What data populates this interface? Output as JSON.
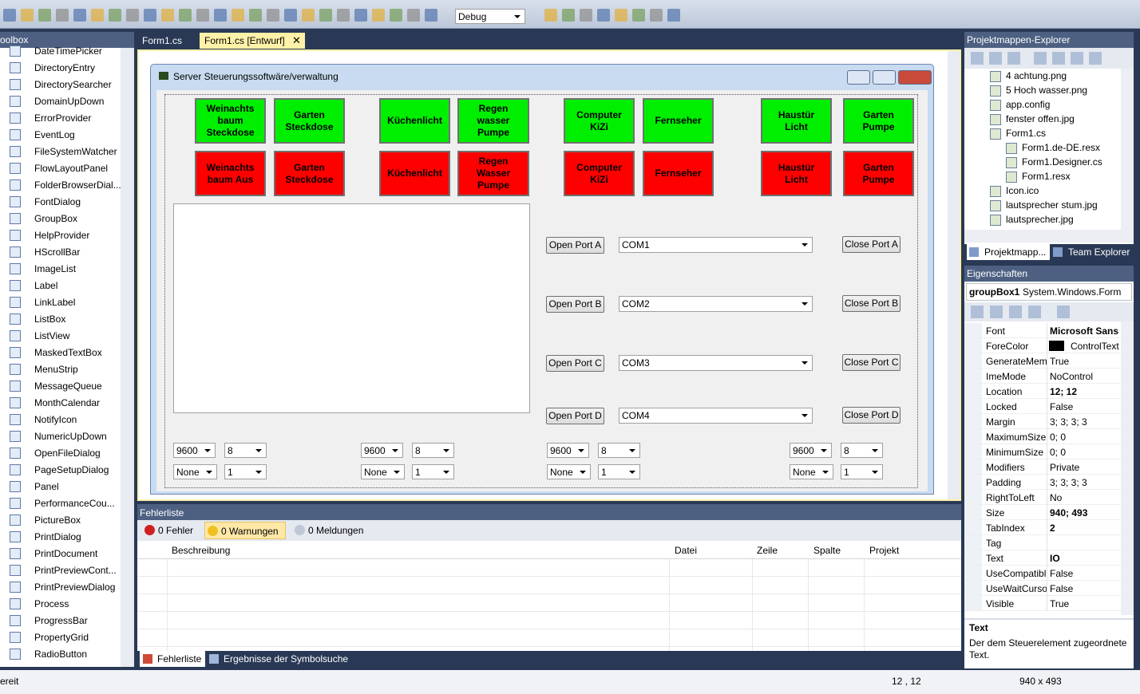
{
  "toolbar": {
    "config": "Debug"
  },
  "toolbox": {
    "title": "oolbox",
    "items": [
      "DateTimePicker",
      "DirectoryEntry",
      "DirectorySearcher",
      "DomainUpDown",
      "ErrorProvider",
      "EventLog",
      "FileSystemWatcher",
      "FlowLayoutPanel",
      "FolderBrowserDial...",
      "FontDialog",
      "GroupBox",
      "HelpProvider",
      "HScrollBar",
      "ImageList",
      "Label",
      "LinkLabel",
      "ListBox",
      "ListView",
      "MaskedTextBox",
      "MenuStrip",
      "MessageQueue",
      "MonthCalendar",
      "NotifyIcon",
      "NumericUpDown",
      "OpenFileDialog",
      "PageSetupDialog",
      "Panel",
      "PerformanceCou...",
      "PictureBox",
      "PrintDialog",
      "PrintDocument",
      "PrintPreviewCont...",
      "PrintPreviewDialog",
      "Process",
      "ProgressBar",
      "PropertyGrid",
      "RadioButton"
    ]
  },
  "tabs": [
    "Form1.cs",
    "Form1.cs [Entwurf]"
  ],
  "form": {
    "title": "Server Steuerungssoftwäre/verwaltung",
    "on_buttons": [
      "Weinachts\nbaum\nSteckdose",
      "Garten\nSteckdose",
      "Küchenlicht",
      "Regen\nwasser\nPumpe",
      "Computer\nKiZi",
      "Fernseher",
      "Haustür\nLicht",
      "Garten\nPumpe"
    ],
    "off_buttons": [
      "Weinachts\nbaum Aus",
      "Garten\nSteckdose",
      "Küchenlicht",
      "Regen\nWasser\nPumpe",
      "Computer\nKiZi",
      "Fernseher",
      "Haustür\nLicht",
      "Garten\nPumpe"
    ],
    "ports": [
      {
        "open": "Open Port A",
        "com": "COM1",
        "close": "Close Port A"
      },
      {
        "open": "Open Port B",
        "com": "COM2",
        "close": "Close Port B"
      },
      {
        "open": "Open Port C",
        "com": "COM3",
        "close": "Close Port C"
      },
      {
        "open": "Open Port D",
        "com": "COM4",
        "close": "Close Port D"
      }
    ],
    "serial_settings": [
      {
        "baud": "9600",
        "bits": "8",
        "parity": "None",
        "stop": "1"
      },
      {
        "baud": "9600",
        "bits": "8",
        "parity": "None",
        "stop": "1"
      },
      {
        "baud": "9600",
        "bits": "8",
        "parity": "None",
        "stop": "1"
      },
      {
        "baud": "9600",
        "bits": "8",
        "parity": "None",
        "stop": "1"
      }
    ]
  },
  "error_list": {
    "title": "Fehlerliste",
    "filters": [
      "0 Fehler",
      "0 Warnungen",
      "0 Meldungen"
    ],
    "columns": [
      "Beschreibung",
      "Datei",
      "Zeile",
      "Spalte",
      "Projekt"
    ],
    "tabs": [
      "Fehlerliste",
      "Ergebnisse der Symbolsuche"
    ]
  },
  "solution_explorer": {
    "title": "Projektmappen-Explorer",
    "items": [
      {
        "label": "4 achtung.png",
        "level": 1
      },
      {
        "label": "5 Hoch wasser.png",
        "level": 1
      },
      {
        "label": "app.config",
        "level": 1
      },
      {
        "label": "fenster offen.jpg",
        "level": 1
      },
      {
        "label": "Form1.cs",
        "level": 1
      },
      {
        "label": "Form1.de-DE.resx",
        "level": 2
      },
      {
        "label": "Form1.Designer.cs",
        "level": 2
      },
      {
        "label": "Form1.resx",
        "level": 2
      },
      {
        "label": "Icon.ico",
        "level": 1
      },
      {
        "label": "lautsprecher stum.jpg",
        "level": 1
      },
      {
        "label": "lautsprecher.jpg",
        "level": 1
      }
    ],
    "tabs": [
      "Projektmapp...",
      "Team Explorer"
    ]
  },
  "properties": {
    "title": "Eigenschaften",
    "object": "groupBox1",
    "object_type": "System.Windows.Form",
    "rows": [
      {
        "name": "Font",
        "value": "Microsoft Sans S",
        "bold": true
      },
      {
        "name": "ForeColor",
        "value": "ControlText"
      },
      {
        "name": "GenerateMem",
        "value": "True"
      },
      {
        "name": "ImeMode",
        "value": "NoControl"
      },
      {
        "name": "Location",
        "value": "12; 12",
        "bold": true
      },
      {
        "name": "Locked",
        "value": "False"
      },
      {
        "name": "Margin",
        "value": "3; 3; 3; 3"
      },
      {
        "name": "MaximumSize",
        "value": "0; 0"
      },
      {
        "name": "MinimumSize",
        "value": "0; 0"
      },
      {
        "name": "Modifiers",
        "value": "Private"
      },
      {
        "name": "Padding",
        "value": "3; 3; 3; 3"
      },
      {
        "name": "RightToLeft",
        "value": "No"
      },
      {
        "name": "Size",
        "value": "940; 493",
        "bold": true
      },
      {
        "name": "TabIndex",
        "value": "2",
        "bold": true
      },
      {
        "name": "Tag"
      },
      {
        "name": "Text",
        "value": "IO",
        "bold": true
      },
      {
        "name": "UseCompatibl",
        "value": "False"
      },
      {
        "name": "UseWaitCurso",
        "value": "False"
      },
      {
        "name": "Visible",
        "value": "True"
      }
    ],
    "description_title": "Text",
    "description": "Der dem Steuerelement zugeordnete Text."
  },
  "status": {
    "text": "ereit",
    "location": "12 , 12",
    "size": "940 x 493"
  }
}
